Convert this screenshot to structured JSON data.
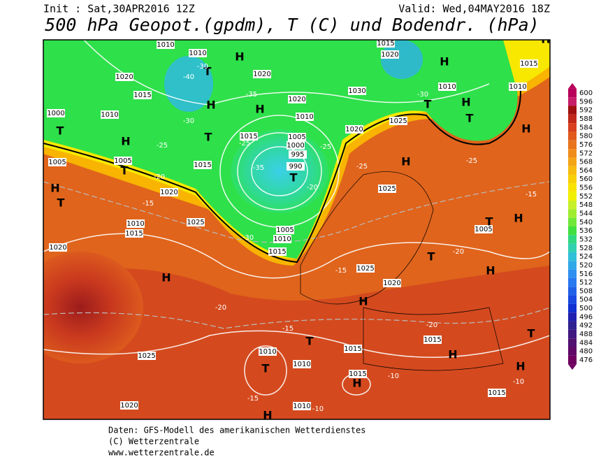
{
  "header": {
    "init": "Init : Sat,30APR2016 12Z",
    "valid": "Valid: Wed,04MAY2016 18Z",
    "title": "500 hPa Geopot.(gpdm), T (C) und Bodendr. (hPa)"
  },
  "colorbar": {
    "levels": [
      600,
      596,
      592,
      588,
      584,
      580,
      576,
      572,
      568,
      564,
      560,
      556,
      552,
      548,
      544,
      540,
      536,
      532,
      528,
      524,
      520,
      516,
      512,
      508,
      504,
      500,
      496,
      492,
      488,
      484,
      480,
      476
    ]
  },
  "map": {
    "pressure_labels": [
      "1010",
      "1010",
      "1020",
      "1015",
      "1010",
      "1000",
      "1005",
      "1005",
      "1015",
      "1020",
      "1010",
      "1015",
      "1025",
      "1020",
      "1020",
      "1020",
      "1010",
      "1015",
      "1005",
      "1000",
      "995",
      "990",
      "1005",
      "1010",
      "1015",
      "1030",
      "1020",
      "1015",
      "1010",
      "1010",
      "1015",
      "1025",
      "1020",
      "1025",
      "1025",
      "1020",
      "1005",
      "1010",
      "1010",
      "1015",
      "1015",
      "1015",
      "1015",
      "1025",
      "1020",
      "1010"
    ],
    "centers": [
      "H",
      "T",
      "H",
      "H",
      "T",
      "H",
      "T",
      "T",
      "H",
      "T",
      "T",
      "H",
      "T",
      "H",
      "H",
      "T",
      "H",
      "T",
      "H",
      "T",
      "H",
      "H",
      "H",
      "T",
      "T",
      "H",
      "H",
      "T",
      "H",
      "H",
      "H"
    ],
    "temperature_labels": [
      "-30",
      "-40",
      "-35",
      "-30",
      "-25",
      "-25",
      "-20",
      "-15",
      "-30",
      "-35",
      "-25",
      "-20",
      "-25",
      "-30",
      "-25",
      "-15",
      "-20",
      "-20",
      "-15",
      "-20",
      "-15",
      "-15",
      "-10",
      "-10",
      "-10"
    ]
  },
  "footer": {
    "line1": "Daten: GFS-Modell des amerikanischen Wetterdienstes",
    "line2": "(C) Wetterzentrale",
    "line3": "www.wetterzentrale.de"
  }
}
